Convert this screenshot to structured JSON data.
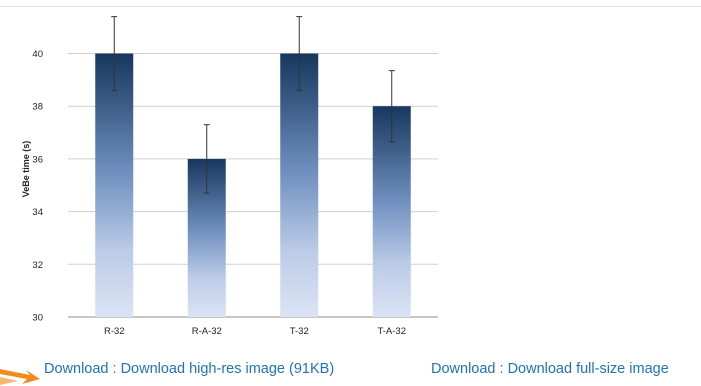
{
  "chart_data": {
    "type": "bar",
    "title": "",
    "xlabel": "",
    "ylabel": "VeBe time (s)",
    "ylim": [
      30,
      41.5
    ],
    "yticks": [
      30,
      32,
      34,
      36,
      38,
      40
    ],
    "grid": true,
    "categories": [
      "R-32",
      "R-A-32",
      "T-32",
      "T-A-32"
    ],
    "values": [
      40,
      36,
      40,
      38
    ],
    "error": [
      1.4,
      1.3,
      1.4,
      1.35
    ],
    "colors": {
      "bar_top": "#17375e",
      "bar_bottom": "#dbe4f4"
    }
  },
  "links": {
    "download_highres": "Download : Download high-res image (91KB)",
    "download_fullsize": "Download : Download full-size image"
  },
  "colors": {
    "link": "#1f73b7",
    "accent_arrow": "#f28a1e"
  }
}
